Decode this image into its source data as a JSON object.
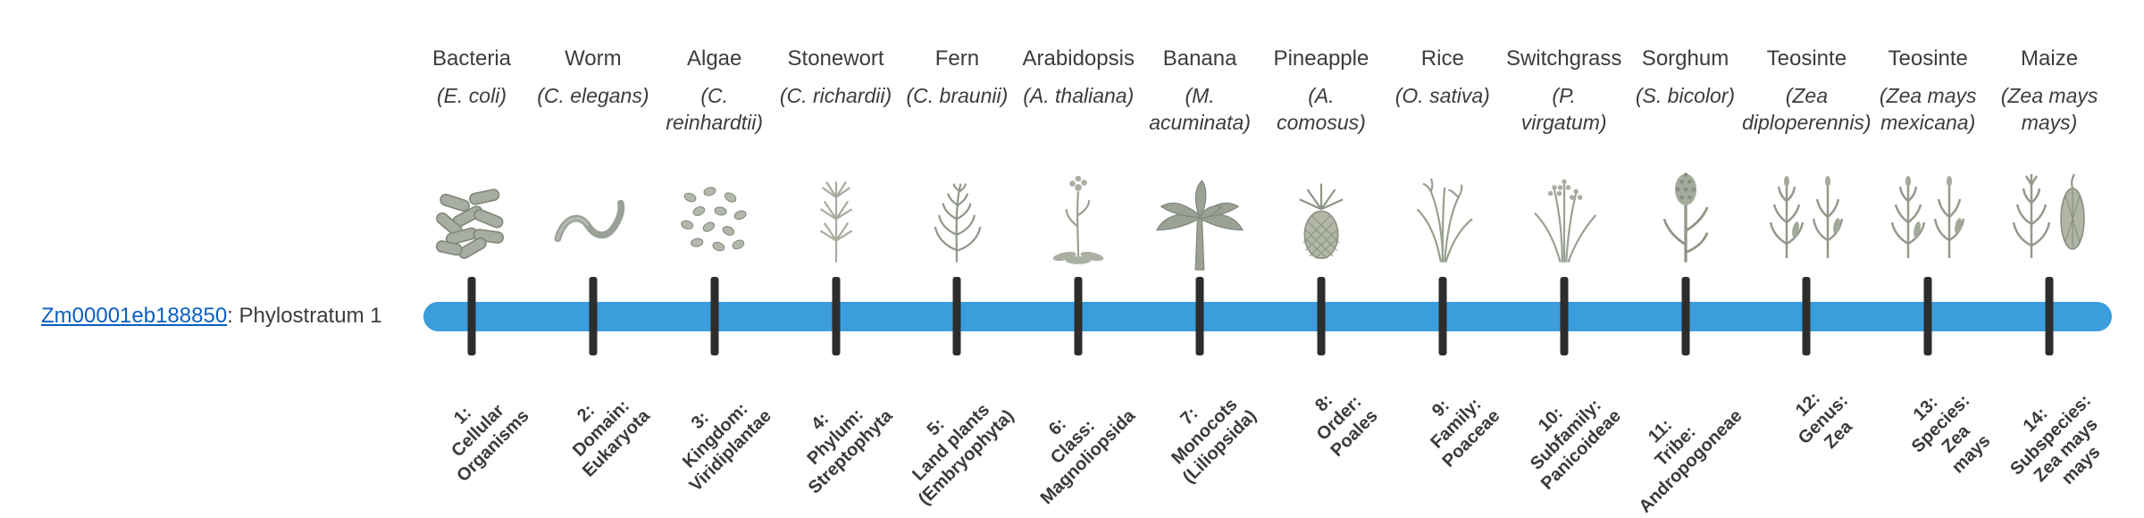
{
  "gene": {
    "id": "Zm00001eb188850",
    "suffix": ": Phylostratum 1"
  },
  "colors": {
    "bar": "#3b9ddb",
    "tick": "#2d2d2d",
    "link": "#0b5fbf",
    "text": "#3c3c3c"
  },
  "columns": [
    {
      "name": "Bacteria",
      "sci_lines": [
        "(E. coli)"
      ],
      "icon": "bacteria-icon",
      "stratum_lines": [
        "1:",
        "Cellular",
        "Organisms"
      ]
    },
    {
      "name": "Worm",
      "sci_lines": [
        "(C. elegans)"
      ],
      "icon": "worm-icon",
      "stratum_lines": [
        "2:",
        "Domain:",
        "Eukaryota"
      ]
    },
    {
      "name": "Algae",
      "sci_lines": [
        "(C.",
        "reinhardtii)"
      ],
      "icon": "algae-icon",
      "stratum_lines": [
        "3:",
        "Kingdom:",
        "Viridiplantae"
      ]
    },
    {
      "name": "Stonewort",
      "sci_lines": [
        "(C. richardii)"
      ],
      "icon": "stonewort-icon",
      "stratum_lines": [
        "4:",
        "Phylum:",
        "Streptophyta"
      ]
    },
    {
      "name": "Fern",
      "sci_lines": [
        "(C. braunii)"
      ],
      "icon": "fern-icon",
      "stratum_lines": [
        "5:",
        "Land plants",
        "(Embryophyta)"
      ]
    },
    {
      "name": "Arabidopsis",
      "sci_lines": [
        "(A. thaliana)"
      ],
      "icon": "arabidopsis-icon",
      "stratum_lines": [
        "6:",
        "Class:",
        "Magnoliopsida"
      ]
    },
    {
      "name": "Banana",
      "sci_lines": [
        "(M.",
        "acuminata)"
      ],
      "icon": "banana-tree-icon",
      "stratum_lines": [
        "7:",
        "Monocots",
        "(Liliopsida)"
      ]
    },
    {
      "name": "Pineapple",
      "sci_lines": [
        "(A.",
        "comosus)"
      ],
      "icon": "pineapple-icon",
      "stratum_lines": [
        "8:",
        "Order:",
        "Poales"
      ]
    },
    {
      "name": "Rice",
      "sci_lines": [
        "(O. sativa)"
      ],
      "icon": "rice-icon",
      "stratum_lines": [
        "9:",
        "Family:",
        "Poaceae"
      ]
    },
    {
      "name": "Switchgrass",
      "sci_lines": [
        "(P.",
        "virgatum)"
      ],
      "icon": "switchgrass-icon",
      "stratum_lines": [
        "10:",
        "Subfamily:",
        "Panicoideae"
      ]
    },
    {
      "name": "Sorghum",
      "sci_lines": [
        "(S. bicolor)"
      ],
      "icon": "sorghum-icon",
      "stratum_lines": [
        "11:",
        "Tribe:",
        "Andropogoneae"
      ]
    },
    {
      "name": "Teosinte",
      "sci_lines": [
        "(Zea",
        "diploperennis)"
      ],
      "icon": "teosinte-icon",
      "stratum_lines": [
        "12:",
        "Genus:",
        "Zea"
      ]
    },
    {
      "name": "Teosinte",
      "sci_lines": [
        "(Zea mays",
        "mexicana)"
      ],
      "icon": "teosinte-icon",
      "stratum_lines": [
        "13:",
        "Species:",
        "Zea",
        "mays"
      ]
    },
    {
      "name": "Maize",
      "sci_lines": [
        "(Zea mays",
        "mays)"
      ],
      "icon": "maize-icon",
      "stratum_lines": [
        "14:",
        "Subspecies:",
        "Zea mays",
        "mays"
      ]
    }
  ]
}
